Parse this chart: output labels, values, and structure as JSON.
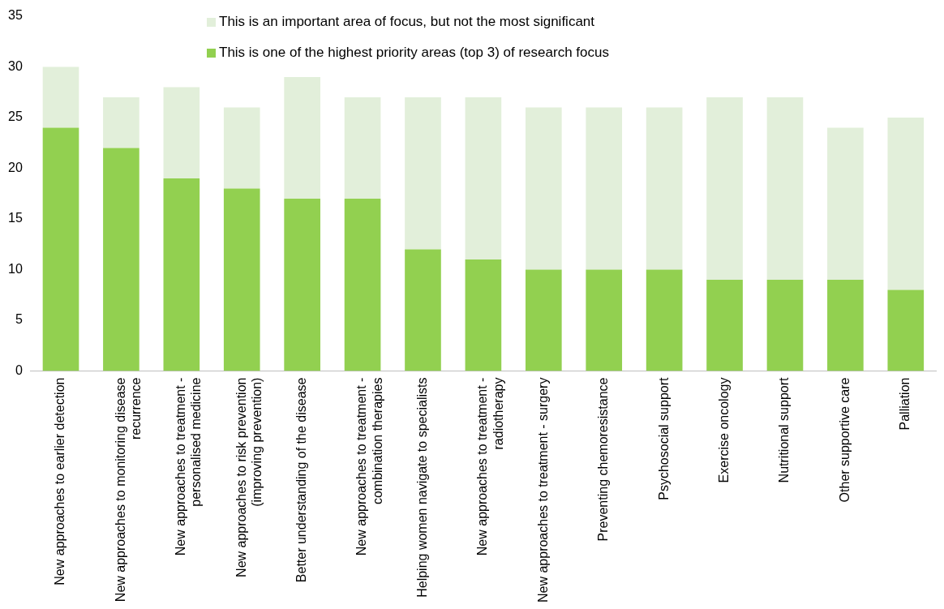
{
  "chart_data": {
    "type": "bar",
    "stacked": true,
    "categories": [
      "New approaches to earlier detection",
      "New approaches to monitoring disease recurrence",
      "New approaches to treatment - personalised medicine",
      "New approaches to risk prevention (improving prevention)",
      "Better understanding of the disease",
      "New approaches to treatment - combination therapies",
      "Helping women navigate to specialists",
      "New approaches to treatment - radiotherapy",
      "New approaches to treatment - surgery",
      "Preventing chemoresistance",
      "Psychosocial support",
      "Exercise oncology",
      "Nutritional support",
      "Other supportive care",
      "Palliation"
    ],
    "series": [
      {
        "name": "This is one of the highest priority areas (top 3) of research focus",
        "color": "#92d050",
        "values": [
          24,
          22,
          19,
          18,
          17,
          17,
          12,
          11,
          10,
          10,
          10,
          9,
          9,
          9,
          8
        ]
      },
      {
        "name": "This is an important area of focus, but not the most significant",
        "color": "#e2efda",
        "values": [
          6,
          5,
          9,
          8,
          12,
          10,
          15,
          16,
          16,
          16,
          16,
          18,
          18,
          15,
          17
        ]
      }
    ],
    "ylim": [
      0,
      35
    ],
    "yticks": [
      0,
      5,
      10,
      15,
      20,
      25,
      30,
      35
    ],
    "grid": false,
    "legend": "top"
  }
}
